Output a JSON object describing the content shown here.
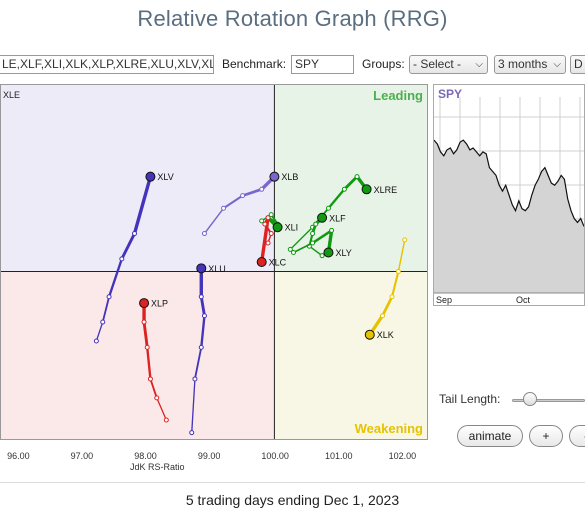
{
  "page": {
    "title": "Relative Rotation Graph (RRG)",
    "footer": "5 trading days ending Dec 1, 2023"
  },
  "toolbar": {
    "symbols_value": "LE,XLF,XLI,XLK,XLP,XLRE,XLU,XLV,XLY",
    "benchmark_label": "Benchmark:",
    "benchmark_value": "SPY",
    "groups_label": "Groups:",
    "groups_value": "- Select -",
    "period_value": "3 months",
    "extra_value": "D"
  },
  "controls": {
    "tail_length_label": "Tail Length:",
    "tail_length_fraction": 0.25,
    "animate_label": "animate",
    "plus_label": "+",
    "minus_label": "-"
  },
  "colors": {
    "leading": "#4caf50",
    "weakening": "#e6c200",
    "improving_bg": "#ecebf7",
    "leading_bg": "#e8f3e8",
    "lagging_bg": "#fbe9ea",
    "weakening_bg": "#f8f7e6"
  },
  "chart_data": [
    {
      "type": "scatter",
      "name": "rrg",
      "xlabel": "JdK RS-Ratio",
      "ylabel": "",
      "xlim": [
        95.7,
        102.4
      ],
      "ylim": [
        97.35,
        102.95
      ],
      "xticks": [
        "96.00",
        "97.00",
        "98.00",
        "99.00",
        "100.00",
        "101.00",
        "102.00"
      ],
      "quadrants": {
        "leading": "Leading",
        "weakening": "Weakening",
        "lagging": "",
        "improving": ""
      },
      "corner_label": "XLE",
      "series": [
        {
          "name": "XLV",
          "color": "#4433bb",
          "points": [
            [
              97.2,
              98.9
            ],
            [
              97.3,
              99.2
            ],
            [
              97.4,
              99.6
            ],
            [
              97.6,
              100.2
            ],
            [
              97.8,
              100.6
            ],
            [
              98.05,
              101.5
            ]
          ]
        },
        {
          "name": "XLB",
          "color": "#7a66cc",
          "points": [
            [
              98.9,
              100.6
            ],
            [
              99.2,
              101.0
            ],
            [
              99.5,
              101.2
            ],
            [
              99.8,
              101.3
            ],
            [
              100.0,
              101.5
            ]
          ]
        },
        {
          "name": "XLRE",
          "color": "#119911",
          "points": [
            [
              100.25,
              100.35
            ],
            [
              100.6,
              100.7
            ],
            [
              100.85,
              101.0
            ],
            [
              101.1,
              101.3
            ],
            [
              101.3,
              101.5
            ],
            [
              101.45,
              101.3
            ]
          ]
        },
        {
          "name": "XLF",
          "color": "#119911",
          "points": [
            [
              100.75,
              100.25
            ],
            [
              100.55,
              100.4
            ],
            [
              100.6,
              100.6
            ],
            [
              100.65,
              100.75
            ],
            [
              100.75,
              100.85
            ]
          ]
        },
        {
          "name": "XLI",
          "color": "#119911",
          "points": [
            [
              99.8,
              100.8
            ],
            [
              99.95,
              100.9
            ],
            [
              100.05,
              100.75
            ],
            [
              99.9,
              100.85
            ],
            [
              100.05,
              100.7
            ]
          ]
        },
        {
          "name": "XLY",
          "color": "#119911",
          "points": [
            [
              100.3,
              100.3
            ],
            [
              100.6,
              100.45
            ],
            [
              100.9,
              100.65
            ],
            [
              100.85,
              100.3
            ]
          ]
        },
        {
          "name": "XLC",
          "color": "#dd2222",
          "points": [
            [
              99.9,
              100.45
            ],
            [
              99.95,
              100.6
            ],
            [
              99.85,
              100.75
            ],
            [
              99.9,
              100.85
            ],
            [
              99.8,
              100.15
            ]
          ]
        },
        {
          "name": "XLU",
          "color": "#4433bb",
          "points": [
            [
              98.7,
              97.45
            ],
            [
              98.75,
              98.3
            ],
            [
              98.85,
              98.8
            ],
            [
              98.9,
              99.3
            ],
            [
              98.85,
              99.6
            ],
            [
              98.85,
              100.05
            ]
          ]
        },
        {
          "name": "XLP",
          "color": "#dd2222",
          "points": [
            [
              98.3,
              97.65
            ],
            [
              98.15,
              98.0
            ],
            [
              98.05,
              98.3
            ],
            [
              98.0,
              98.8
            ],
            [
              97.95,
              99.2
            ],
            [
              97.95,
              99.5
            ]
          ]
        },
        {
          "name": "XLK",
          "color": "#e6c200",
          "points": [
            [
              102.05,
              100.5
            ],
            [
              101.95,
              100.0
            ],
            [
              101.85,
              99.6
            ],
            [
              101.7,
              99.3
            ],
            [
              101.5,
              99.0
            ]
          ]
        }
      ]
    },
    {
      "type": "line",
      "name": "SPY",
      "title": "SPY",
      "xlabel": "",
      "ylabel": "",
      "x_ticks": [
        "Sep",
        "Oct"
      ],
      "values": [
        0.78,
        0.76,
        0.72,
        0.7,
        0.73,
        0.74,
        0.71,
        0.73,
        0.77,
        0.78,
        0.76,
        0.73,
        0.74,
        0.72,
        0.7,
        0.72,
        0.71,
        0.64,
        0.62,
        0.6,
        0.55,
        0.52,
        0.55,
        0.5,
        0.45,
        0.42,
        0.47,
        0.43,
        0.42,
        0.44,
        0.5,
        0.55,
        0.58,
        0.62,
        0.64,
        0.6,
        0.56,
        0.55,
        0.57,
        0.6,
        0.58,
        0.48,
        0.42,
        0.38,
        0.36,
        0.38,
        0.34
      ]
    }
  ]
}
